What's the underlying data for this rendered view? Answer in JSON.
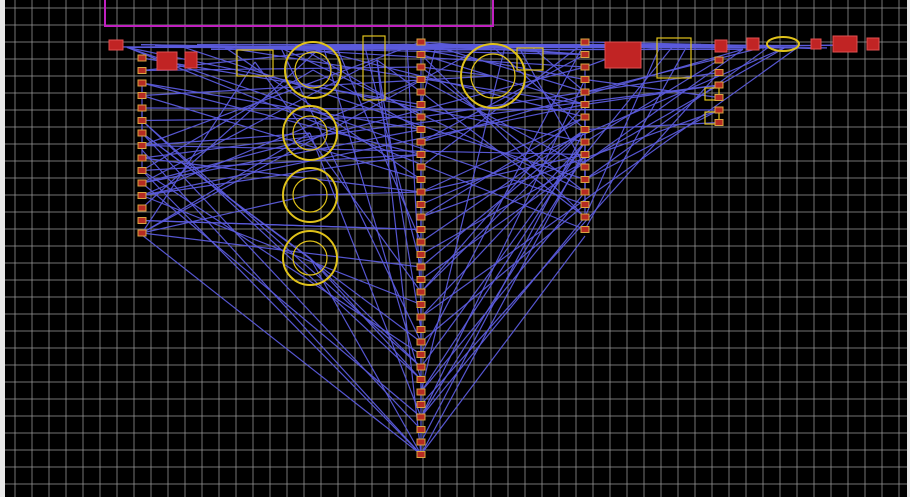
{
  "view": {
    "background": "#000000",
    "grid_color": "#9a9a9a",
    "ratsnest_color": "#5b5bdc",
    "pad_color": "#b52a22",
    "silkscreen_color": "#e0c21a",
    "board_outline_color": "#c020c0"
  },
  "icons": {
    "capacitor": "circle-outline-icon",
    "header": "pin-header-icon"
  }
}
